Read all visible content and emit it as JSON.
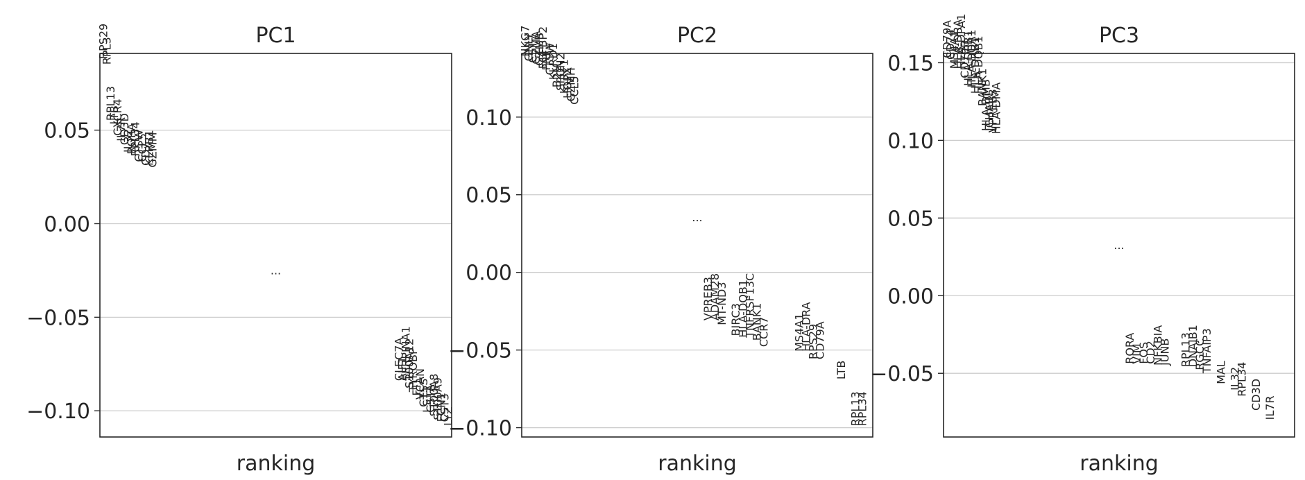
{
  "chart_data": [
    {
      "type": "scatter",
      "title": "PC1",
      "xlabel": "ranking",
      "ylabel": "",
      "ylim": [
        -0.114,
        0.091
      ],
      "yticks": [
        -0.1,
        -0.05,
        0.0,
        0.05
      ],
      "ytick_labels": [
        "−0.10",
        "−0.05",
        "0.00",
        "0.05"
      ],
      "grid": true,
      "ellipsis": "...",
      "ellipsis_position": {
        "x": 50,
        "y": -0.027
      },
      "points": [
        {
          "x": 1,
          "y": 0.088,
          "label": "RPS29"
        },
        {
          "x": 2,
          "y": 0.085,
          "label": "RPL3"
        },
        {
          "x": 3,
          "y": 0.055,
          "label": "RPL13"
        },
        {
          "x": 4,
          "y": 0.053,
          "label": "LTB"
        },
        {
          "x": 5,
          "y": 0.047,
          "label": "CXCR4"
        },
        {
          "x": 6,
          "y": 0.044,
          "label": "IL7R"
        },
        {
          "x": 7,
          "y": 0.042,
          "label": "CD3D"
        },
        {
          "x": 8,
          "y": 0.038,
          "label": "IL32"
        },
        {
          "x": 9,
          "y": 0.037,
          "label": "RORA"
        },
        {
          "x": 10,
          "y": 0.036,
          "label": "RPL34"
        },
        {
          "x": 11,
          "y": 0.033,
          "label": "CTSW"
        },
        {
          "x": 12,
          "y": 0.033,
          "label": "CCL5"
        },
        {
          "x": 13,
          "y": 0.031,
          "label": "CD7"
        },
        {
          "x": 14,
          "y": 0.031,
          "label": "KLRB1"
        },
        {
          "x": 15,
          "y": 0.03,
          "label": "GZMM"
        },
        {
          "x": 85,
          "y": -0.084,
          "label": "CLEC7A"
        },
        {
          "x": 86,
          "y": -0.084,
          "label": "AIF1"
        },
        {
          "x": 87,
          "y": -0.084,
          "label": "SERPINA1"
        },
        {
          "x": 88,
          "y": -0.088,
          "label": "S100A12"
        },
        {
          "x": 89,
          "y": -0.09,
          "label": "TYROBP"
        },
        {
          "x": 90,
          "y": -0.092,
          "label": "FTL"
        },
        {
          "x": 91,
          "y": -0.094,
          "label": "VCAN"
        },
        {
          "x": 92,
          "y": -0.098,
          "label": "CTSS"
        },
        {
          "x": 93,
          "y": -0.101,
          "label": "LST1"
        },
        {
          "x": 94,
          "y": -0.101,
          "label": "CSTA"
        },
        {
          "x": 95,
          "y": -0.103,
          "label": "S100A8"
        },
        {
          "x": 96,
          "y": -0.105,
          "label": "S100A9"
        },
        {
          "x": 97,
          "y": -0.106,
          "label": "FCN1"
        },
        {
          "x": 98,
          "y": -0.106,
          "label": "CST3"
        },
        {
          "x": 99,
          "y": -0.108,
          "label": "LYZ"
        }
      ]
    },
    {
      "type": "scatter",
      "title": "PC2",
      "xlabel": "ranking",
      "ylabel": "",
      "ylim": [
        -0.106,
        0.141
      ],
      "yticks": [
        -0.1,
        -0.05,
        0.0,
        0.05,
        0.1
      ],
      "ytick_labels": [
        "−0.10",
        "−0.05",
        "0.00",
        "0.05",
        "0.10"
      ],
      "grid": true,
      "ellipsis": "...",
      "ellipsis_position": {
        "x": 50,
        "y": 0.033
      },
      "points": [
        {
          "x": 1,
          "y": 0.139,
          "label": "NKG7"
        },
        {
          "x": 2,
          "y": 0.136,
          "label": "GNLY"
        },
        {
          "x": 3,
          "y": 0.135,
          "label": "CST7"
        },
        {
          "x": 4,
          "y": 0.134,
          "label": "GZMA"
        },
        {
          "x": 5,
          "y": 0.133,
          "label": "GZMB"
        },
        {
          "x": 6,
          "y": 0.131,
          "label": "FGFBP2"
        },
        {
          "x": 7,
          "y": 0.13,
          "label": "PRF1"
        },
        {
          "x": 8,
          "y": 0.127,
          "label": "CTSW"
        },
        {
          "x": 9,
          "y": 0.124,
          "label": "KLRD1"
        },
        {
          "x": 10,
          "y": 0.119,
          "label": "B2M"
        },
        {
          "x": 11,
          "y": 0.117,
          "label": "SPON2"
        },
        {
          "x": 12,
          "y": 0.115,
          "label": "KLRF1"
        },
        {
          "x": 13,
          "y": 0.112,
          "label": "HOPX"
        },
        {
          "x": 14,
          "y": 0.11,
          "label": "GZMH"
        },
        {
          "x": 15,
          "y": 0.108,
          "label": "CCL5"
        },
        {
          "x": 53,
          "y": -0.031,
          "label": "VPREB3"
        },
        {
          "x": 55,
          "y": -0.031,
          "label": "ADAM28"
        },
        {
          "x": 57,
          "y": -0.034,
          "label": "MT-ND3"
        },
        {
          "x": 61,
          "y": -0.041,
          "label": "BIRC3"
        },
        {
          "x": 63,
          "y": -0.042,
          "label": "HLA-DQB1"
        },
        {
          "x": 65,
          "y": -0.042,
          "label": "TNFRSF13C"
        },
        {
          "x": 67,
          "y": -0.044,
          "label": "BANK1"
        },
        {
          "x": 69,
          "y": -0.048,
          "label": "CCR7"
        },
        {
          "x": 79,
          "y": -0.051,
          "label": "MS4A1"
        },
        {
          "x": 81,
          "y": -0.051,
          "label": "HLA-DRA"
        },
        {
          "x": 83,
          "y": -0.056,
          "label": "RPS29"
        },
        {
          "x": 85,
          "y": -0.056,
          "label": "CD79A"
        },
        {
          "x": 91,
          "y": -0.069,
          "label": "LTB"
        },
        {
          "x": 95,
          "y": -0.099,
          "label": "RPL13"
        },
        {
          "x": 97,
          "y": -0.099,
          "label": "RPL34"
        }
      ]
    },
    {
      "type": "scatter",
      "title": "PC3",
      "xlabel": "ranking",
      "ylabel": "",
      "ylim": [
        -0.091,
        0.156
      ],
      "yticks": [
        -0.05,
        0.0,
        0.05,
        0.1,
        0.15
      ],
      "ytick_labels": [
        "−0.05",
        "0.00",
        "0.05",
        "0.10",
        "0.15"
      ],
      "grid": true,
      "ellipsis": "...",
      "ellipsis_position": {
        "x": 50,
        "y": 0.03
      },
      "points": [
        {
          "x": 1,
          "y": 0.153,
          "label": "CD79A"
        },
        {
          "x": 2,
          "y": 0.152,
          "label": "CD74"
        },
        {
          "x": 3,
          "y": 0.146,
          "label": "MS4A1"
        },
        {
          "x": 4,
          "y": 0.146,
          "label": "HLA-DRA"
        },
        {
          "x": 5,
          "y": 0.146,
          "label": "HLA-DPA1"
        },
        {
          "x": 6,
          "y": 0.14,
          "label": "CD79B"
        },
        {
          "x": 7,
          "y": 0.135,
          "label": "HLA-DPB1"
        },
        {
          "x": 8,
          "y": 0.134,
          "label": "HLA-DQA1"
        },
        {
          "x": 9,
          "y": 0.13,
          "label": "HLA-DRB1"
        },
        {
          "x": 10,
          "y": 0.13,
          "label": "HLA-DQB1"
        },
        {
          "x": 11,
          "y": 0.122,
          "label": "BANK1"
        },
        {
          "x": 12,
          "y": 0.106,
          "label": "HLA-DMB"
        },
        {
          "x": 13,
          "y": 0.106,
          "label": "JCHAIN"
        },
        {
          "x": 14,
          "y": 0.105,
          "label": "VPREB3"
        },
        {
          "x": 15,
          "y": 0.104,
          "label": "HLA-DMA"
        },
        {
          "x": 53,
          "y": -0.044,
          "label": "RORA"
        },
        {
          "x": 55,
          "y": -0.044,
          "label": "VIM"
        },
        {
          "x": 57,
          "y": -0.044,
          "label": "FOS"
        },
        {
          "x": 59,
          "y": -0.044,
          "label": "CD2"
        },
        {
          "x": 61,
          "y": -0.045,
          "label": "NFKBIA"
        },
        {
          "x": 63,
          "y": -0.045,
          "label": "JUNB"
        },
        {
          "x": 69,
          "y": -0.046,
          "label": "RPL13"
        },
        {
          "x": 71,
          "y": -0.046,
          "label": "DNAJB1"
        },
        {
          "x": 73,
          "y": -0.048,
          "label": "RGCC"
        },
        {
          "x": 75,
          "y": -0.05,
          "label": "TNFAIP3"
        },
        {
          "x": 79,
          "y": -0.057,
          "label": "MAL"
        },
        {
          "x": 83,
          "y": -0.061,
          "label": "IL32"
        },
        {
          "x": 85,
          "y": -0.065,
          "label": "RPL34"
        },
        {
          "x": 89,
          "y": -0.074,
          "label": "CD3D"
        },
        {
          "x": 93,
          "y": -0.08,
          "label": "IL7R"
        }
      ]
    }
  ]
}
